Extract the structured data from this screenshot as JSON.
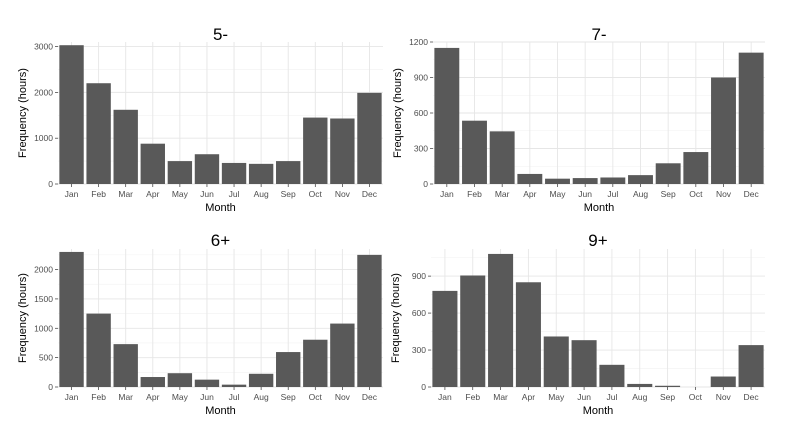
{
  "chart_data": [
    {
      "type": "bar",
      "title": "5-",
      "xlabel": "Month",
      "ylabel": "Frequency (hours)",
      "categories": [
        "Jan",
        "Feb",
        "Mar",
        "Apr",
        "May",
        "Jun",
        "Jul",
        "Aug",
        "Sep",
        "Oct",
        "Nov",
        "Dec"
      ],
      "values": [
        3030,
        2200,
        1620,
        880,
        500,
        650,
        460,
        440,
        500,
        1450,
        1430,
        1990
      ],
      "ylim": [
        0,
        3100
      ],
      "yticks": [
        0,
        1000,
        2000,
        3000
      ],
      "grid": true,
      "bar_color": "#595959"
    },
    {
      "type": "bar",
      "title": "7-",
      "xlabel": "Month",
      "ylabel": "Frequency (hours)",
      "categories": [
        "Jan",
        "Feb",
        "Mar",
        "Apr",
        "May",
        "Jun",
        "Jul",
        "Aug",
        "Sep",
        "Oct",
        "Nov",
        "Dec"
      ],
      "values": [
        1150,
        535,
        445,
        85,
        45,
        50,
        55,
        75,
        175,
        270,
        900,
        1110
      ],
      "ylim": [
        0,
        1200
      ],
      "yticks": [
        0,
        300,
        600,
        900,
        1200
      ],
      "grid": true,
      "bar_color": "#595959"
    },
    {
      "type": "bar",
      "title": "6+",
      "xlabel": "Month",
      "ylabel": "Frequency (hours)",
      "categories": [
        "Jan",
        "Feb",
        "Mar",
        "Apr",
        "May",
        "Jun",
        "Jul",
        "Aug",
        "Sep",
        "Oct",
        "Nov",
        "Dec"
      ],
      "values": [
        2300,
        1250,
        730,
        170,
        235,
        125,
        40,
        225,
        595,
        805,
        1080,
        2250
      ],
      "ylim": [
        0,
        2350
      ],
      "yticks": [
        0,
        500,
        1000,
        1500,
        2000
      ],
      "grid": true,
      "bar_color": "#595959"
    },
    {
      "type": "bar",
      "title": "9+",
      "xlabel": "Month",
      "ylabel": "Frequency (hours)",
      "categories": [
        "Jan",
        "Feb",
        "Mar",
        "Apr",
        "May",
        "Jun",
        "Jul",
        "Aug",
        "Sep",
        "Oct",
        "Nov",
        "Dec"
      ],
      "values": [
        780,
        905,
        1080,
        850,
        410,
        380,
        180,
        25,
        10,
        0,
        85,
        340
      ],
      "ylim": [
        0,
        1120
      ],
      "yticks": [
        0,
        300,
        600,
        900
      ],
      "grid": true,
      "bar_color": "#595959"
    }
  ]
}
